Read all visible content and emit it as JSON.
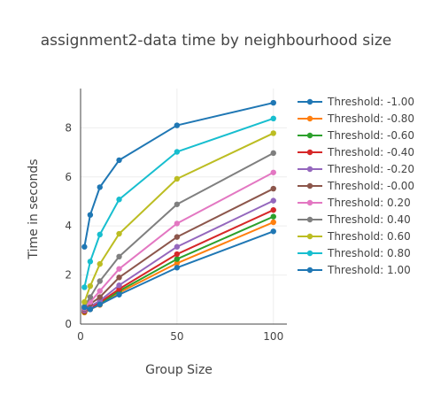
{
  "chart_data": {
    "type": "line",
    "title": "assignment2-data time by neighbourhood size",
    "xlabel": "Group Size",
    "ylabel": "Time in seconds",
    "x": [
      2,
      5,
      10,
      20,
      50,
      100
    ],
    "xlim": [
      0,
      107
    ],
    "ylim": [
      0,
      9.6
    ],
    "xticks": [
      0,
      50,
      100
    ],
    "yticks": [
      0,
      2,
      4,
      6,
      8
    ],
    "grid": true,
    "legend_position": "right",
    "series": [
      {
        "name": "Threshold: -1.00",
        "color": "#1f77b4",
        "values": [
          3.15,
          4.45,
          5.58,
          6.68,
          8.1,
          9.02
        ]
      },
      {
        "name": "Threshold: -0.80",
        "color": "#ff7f0e",
        "values": [
          0.47,
          0.6,
          0.78,
          1.28,
          2.48,
          4.15
        ]
      },
      {
        "name": "Threshold: -0.60",
        "color": "#2ca02c",
        "values": [
          0.5,
          0.63,
          0.82,
          1.35,
          2.65,
          4.38
        ]
      },
      {
        "name": "Threshold: -0.40",
        "color": "#d62728",
        "values": [
          0.52,
          0.66,
          0.88,
          1.43,
          2.85,
          4.65
        ]
      },
      {
        "name": "Threshold: -0.20",
        "color": "#9467bd",
        "values": [
          0.56,
          0.72,
          0.95,
          1.58,
          3.15,
          5.03
        ]
      },
      {
        "name": "Threshold: -0.00",
        "color": "#8c564b",
        "values": [
          0.62,
          0.82,
          1.1,
          1.9,
          3.55,
          5.52
        ]
      },
      {
        "name": "Threshold: 0.20",
        "color": "#e377c2",
        "values": [
          0.65,
          0.9,
          1.35,
          2.25,
          4.1,
          6.18
        ]
      },
      {
        "name": "Threshold: 0.40",
        "color": "#7f7f7f",
        "values": [
          0.72,
          1.1,
          1.75,
          2.75,
          4.88,
          6.97
        ]
      },
      {
        "name": "Threshold: 0.60",
        "color": "#bcbd22",
        "values": [
          0.9,
          1.55,
          2.45,
          3.68,
          5.92,
          7.78
        ]
      },
      {
        "name": "Threshold: 0.80",
        "color": "#17becf",
        "values": [
          1.5,
          2.55,
          3.65,
          5.08,
          7.02,
          8.38
        ]
      },
      {
        "name": "Threshold: 1.00",
        "color": "#1f77b4",
        "values": [
          0.68,
          0.6,
          0.8,
          1.2,
          2.3,
          3.78
        ]
      }
    ]
  }
}
